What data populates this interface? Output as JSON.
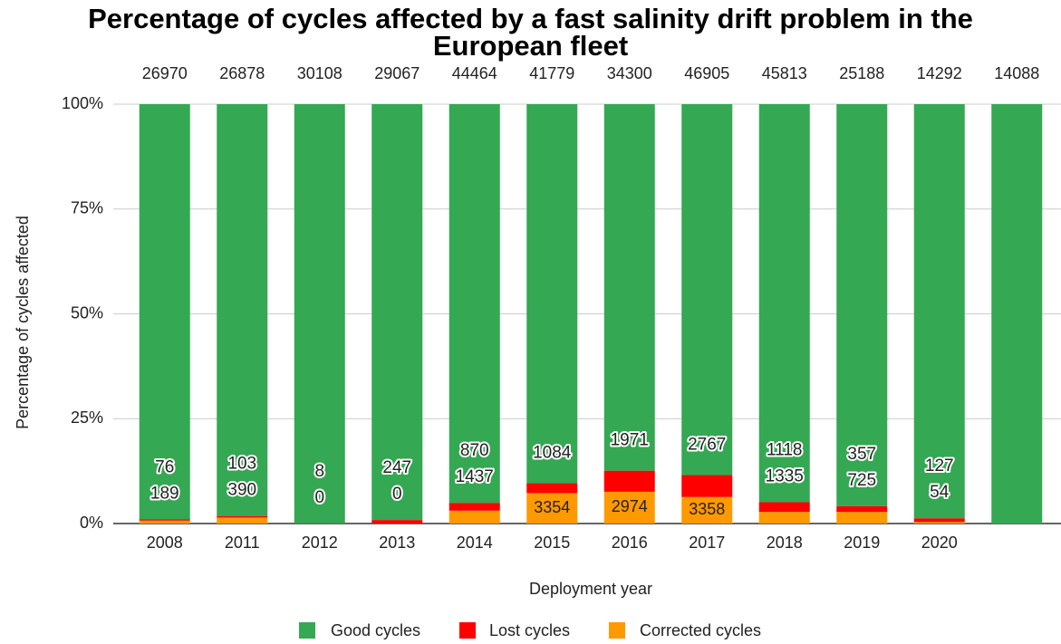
{
  "chart_data": {
    "type": "bar",
    "stacking": "percent",
    "title": "Percentage of cycles affected by a fast salinity drift problem in the European fleet",
    "x_label": "Deployment year",
    "y_label": "Percentage of cycles affected",
    "categories": [
      "2008",
      "2011",
      "2012",
      "2013",
      "2014",
      "2015",
      "2016",
      "2017",
      "2018",
      "2019",
      "2020",
      null
    ],
    "series": [
      {
        "name": "Corrected cycles",
        "color": "#ff9900",
        "values": [
          189,
          390,
          0,
          0,
          1437,
          3354,
          2974,
          3358,
          1335,
          725,
          54,
          null
        ]
      },
      {
        "name": "Lost cycles",
        "color": "#ff0000",
        "values": [
          76,
          103,
          8,
          247,
          870,
          1084,
          1971,
          2767,
          1118,
          357,
          127,
          null
        ]
      },
      {
        "name": "Good cycles",
        "color": "#34a853",
        "values": [
          26970,
          26878,
          30108,
          29067,
          44464,
          41779,
          34300,
          46905,
          45813,
          25188,
          14292,
          14088
        ]
      }
    ],
    "legend_order": [
      2,
      1,
      0
    ],
    "ylim": [
      0,
      100
    ],
    "yticks": [
      {
        "value": 0,
        "label": "0%"
      },
      {
        "value": 25,
        "label": "25%"
      },
      {
        "value": 50,
        "label": "50%"
      },
      {
        "value": 75,
        "label": "75%"
      },
      {
        "value": 100,
        "label": "100%"
      }
    ],
    "grid": true,
    "legend": "bottom"
  }
}
